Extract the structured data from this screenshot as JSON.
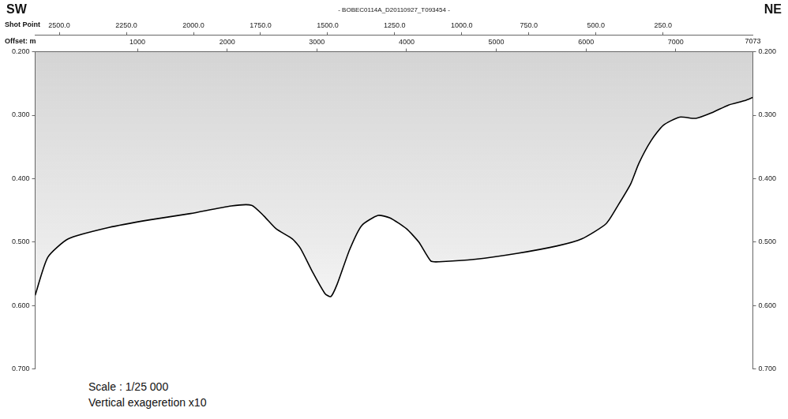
{
  "chart_data": {
    "type": "line",
    "title": "- BOBEC0114A_D20110927_T093454 -",
    "direction_labels": [
      "SW",
      "NE"
    ],
    "x_label": "Shot Point",
    "x2_label": "Offset: m",
    "x2_end_label": "7073",
    "notes": [
      "Scale : 1/25 000",
      "Vertical exageretion x10"
    ],
    "x": [
      2590,
      2543,
      2467,
      2315,
      2163,
      2011,
      1859,
      1783,
      1737,
      1692,
      1631,
      1601,
      1555,
      1510,
      1488,
      1464,
      1418,
      1373,
      1312,
      1267,
      1206,
      1160,
      1115,
      1084,
      948,
      796,
      644,
      553,
      462,
      416,
      370,
      340,
      294,
      249,
      188,
      127,
      67,
      6,
      -55,
      -85
    ],
    "values": [
      0.584,
      0.524,
      0.495,
      0.477,
      0.465,
      0.455,
      0.443,
      0.442,
      0.459,
      0.479,
      0.495,
      0.51,
      0.548,
      0.581,
      0.586,
      0.566,
      0.512,
      0.474,
      0.458,
      0.462,
      0.479,
      0.5,
      0.53,
      0.531,
      0.527,
      0.518,
      0.506,
      0.495,
      0.471,
      0.441,
      0.408,
      0.376,
      0.34,
      0.316,
      0.303,
      0.305,
      0.296,
      0.284,
      0.277,
      0.272
    ],
    "color": "#000000",
    "xlim": [
      2590,
      -85
    ],
    "xticks": [
      {
        "value": 2500,
        "label": "2500.0"
      },
      {
        "value": 2250,
        "label": "2250.0"
      },
      {
        "value": 2000,
        "label": "2000.0"
      },
      {
        "value": 1750,
        "label": "1750.0"
      },
      {
        "value": 1500,
        "label": "1500.0"
      },
      {
        "value": 1250,
        "label": "1250.0"
      },
      {
        "value": 1000,
        "label": "1000.0"
      },
      {
        "value": 750,
        "label": "750.0"
      },
      {
        "value": 500,
        "label": "500.0"
      },
      {
        "value": 250,
        "label": "250.0"
      }
    ],
    "x2lim": [
      -140,
      7860
    ],
    "x2ticks": [
      1000,
      2000,
      3000,
      4000,
      5000,
      6000,
      7000
    ],
    "ylim": [
      0.7,
      0.2
    ],
    "yticks": [
      {
        "value": 0.2,
        "label": "0.200"
      },
      {
        "value": 0.3,
        "label": "0.300"
      },
      {
        "value": 0.4,
        "label": "0.400"
      },
      {
        "value": 0.5,
        "label": "0.500"
      },
      {
        "value": 0.6,
        "label": "0.600"
      },
      {
        "value": 0.7,
        "label": "0.700"
      }
    ],
    "y2lim": [
      0.7,
      0.2
    ],
    "y2ticks": [
      {
        "value": 0.2,
        "label": "0.200"
      },
      {
        "value": 0.3,
        "label": "0.300"
      },
      {
        "value": 0.4,
        "label": "0.400"
      },
      {
        "value": 0.5,
        "label": "0.500"
      },
      {
        "value": 0.6,
        "label": "0.600"
      },
      {
        "value": 0.7,
        "label": "0.700"
      }
    ],
    "grid": false
  }
}
